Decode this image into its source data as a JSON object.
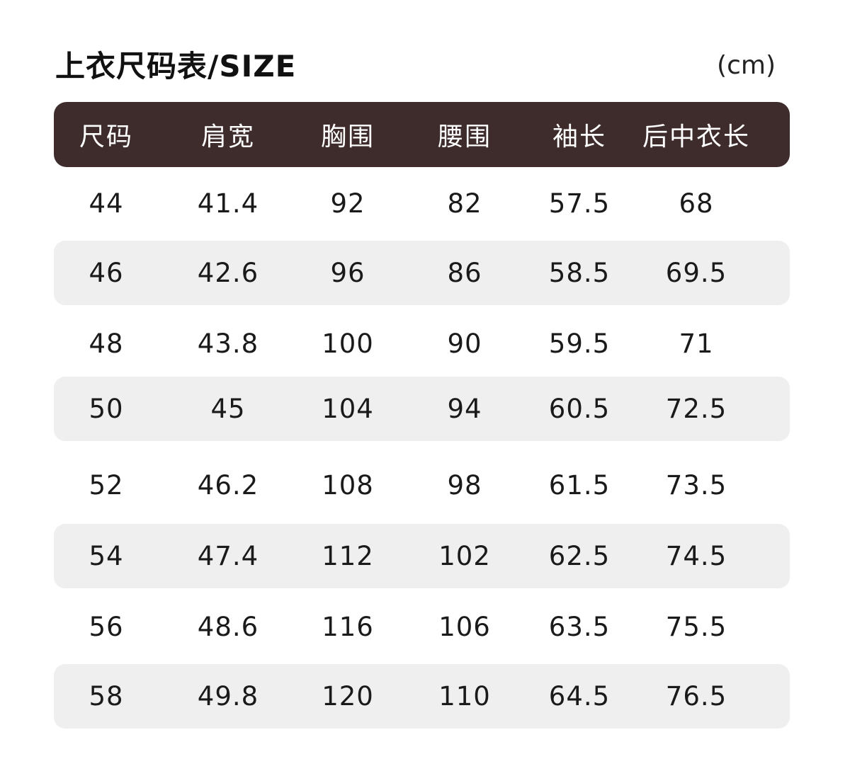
{
  "title": "上衣尺码表/SIZE",
  "unit": "(cm)",
  "colors": {
    "header_bg": "#3e2c2c",
    "stripe_bg": "#f0efef"
  },
  "columns": [
    "尺码",
    "肩宽",
    "胸围",
    "腰围",
    "袖长",
    "后中衣长"
  ],
  "rows": [
    [
      "44",
      "41.4",
      "92",
      "82",
      "57.5",
      "68"
    ],
    [
      "46",
      "42.6",
      "96",
      "86",
      "58.5",
      "69.5"
    ],
    [
      "48",
      "43.8",
      "100",
      "90",
      "59.5",
      "71"
    ],
    [
      "50",
      "45",
      "104",
      "94",
      "60.5",
      "72.5"
    ],
    [
      "52",
      "46.2",
      "108",
      "98",
      "61.5",
      "73.5"
    ],
    [
      "54",
      "47.4",
      "112",
      "102",
      "62.5",
      "74.5"
    ],
    [
      "56",
      "48.6",
      "116",
      "106",
      "63.5",
      "75.5"
    ],
    [
      "58",
      "49.8",
      "120",
      "110",
      "64.5",
      "76.5"
    ]
  ]
}
